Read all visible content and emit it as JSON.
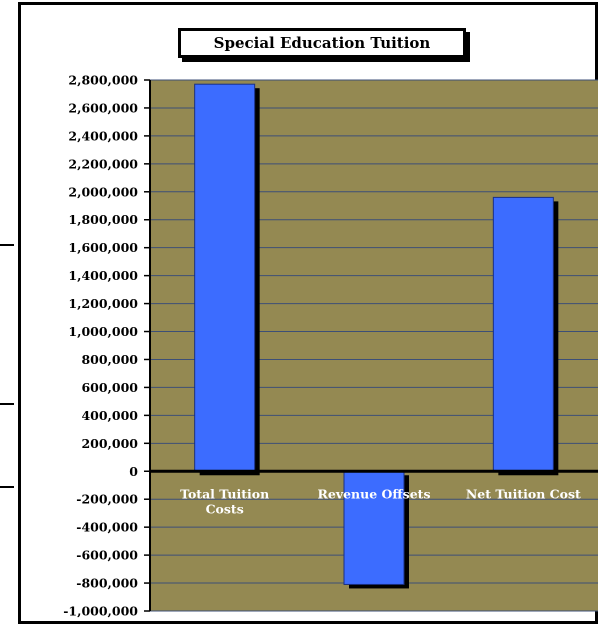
{
  "chart_data": {
    "type": "bar",
    "title": "Special Education Tuition",
    "categories": [
      [
        "Total Tuition",
        "Costs"
      ],
      [
        "Revenue Offsets"
      ],
      [
        "Net Tuition Cost"
      ]
    ],
    "values": [
      2770000,
      -810000,
      1960000
    ],
    "ylim": [
      -1000000,
      2800000
    ],
    "ytick_step": 200000,
    "yticks": [
      "2,800,000",
      "2,600,000",
      "2,400,000",
      "2,200,000",
      "2,000,000",
      "1,800,000",
      "1,600,000",
      "1,400,000",
      "1,200,000",
      "1,000,000",
      "800,000",
      "600,000",
      "400,000",
      "200,000",
      "0",
      "-200,000",
      "-400,000",
      "-600,000",
      "-800,000",
      "-1,000,000"
    ],
    "grid": true,
    "legend": false,
    "colors": {
      "plot_background": "#948952",
      "bar": "#3c6cff",
      "gridline": "#3d4f77",
      "zero_line": "#000000"
    }
  }
}
